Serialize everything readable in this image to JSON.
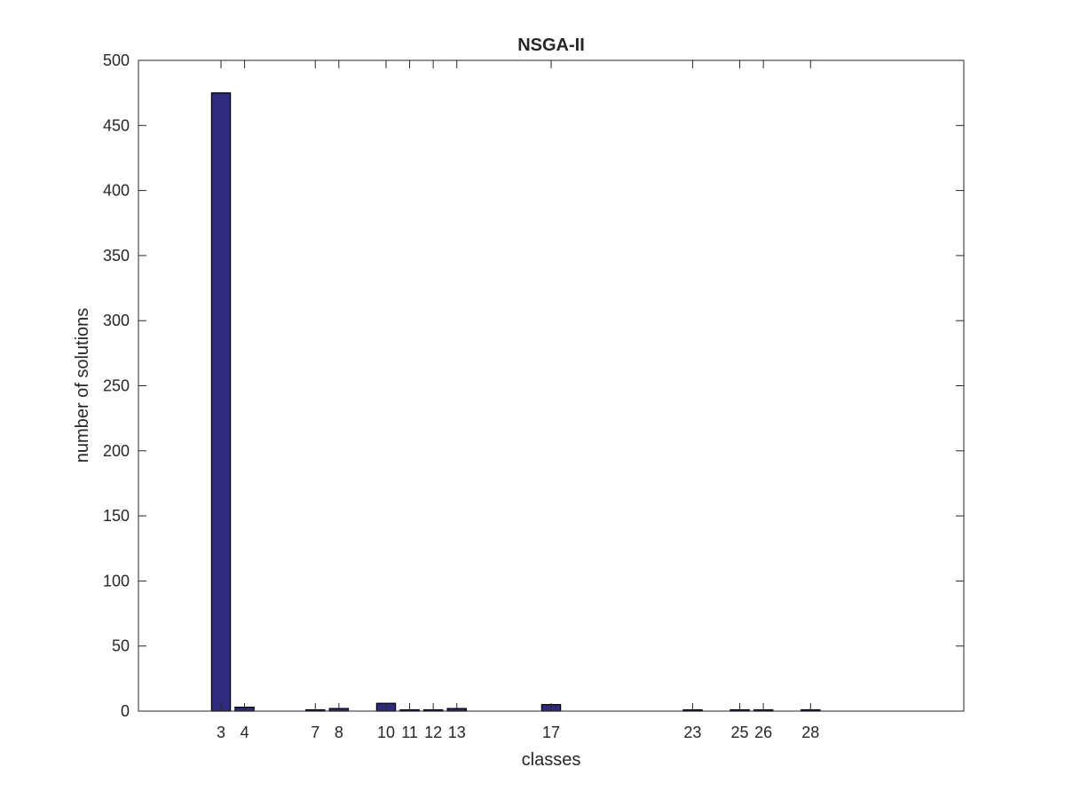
{
  "chart_data": {
    "type": "bar",
    "title": "NSGA-II",
    "xlabel": "classes",
    "ylabel": "number of solutions",
    "xlim": [
      -0.5,
      34.5
    ],
    "ylim": [
      0,
      500
    ],
    "yticks": [
      0,
      50,
      100,
      150,
      200,
      250,
      300,
      350,
      400,
      450,
      500
    ],
    "xticks": [
      3,
      4,
      7,
      8,
      10,
      11,
      12,
      13,
      17,
      23,
      25,
      26,
      28
    ],
    "categories": [
      3,
      4,
      7,
      8,
      10,
      11,
      12,
      13,
      17,
      23,
      25,
      26,
      28
    ],
    "values": [
      475,
      3,
      1,
      2,
      6,
      1,
      1,
      2,
      5,
      1,
      1,
      1,
      1
    ],
    "bar_color": "#2e2a7e",
    "edge_color": "#000000",
    "grid": false,
    "legend": "none"
  }
}
